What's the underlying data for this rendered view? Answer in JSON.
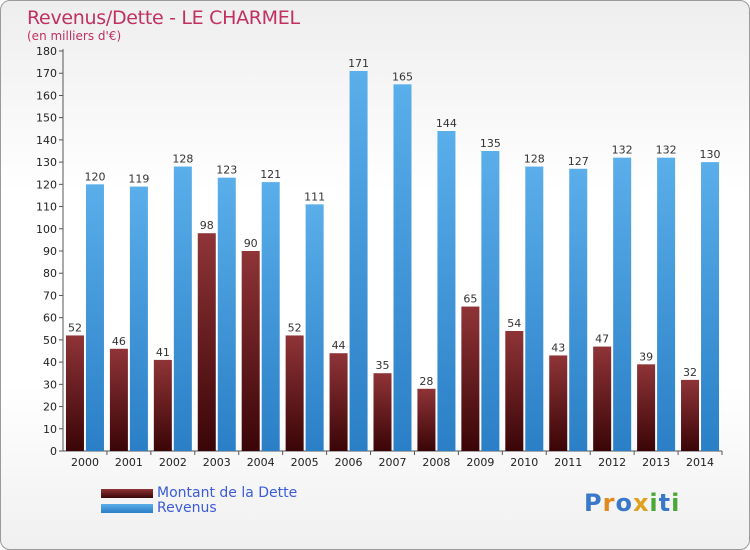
{
  "title": "Revenus/Dette - LE CHARMEL",
  "subtitle": "(en milliers d'€)",
  "colors": {
    "dette_top": "#8f3437",
    "dette_bottom": "#3a0507",
    "revenus_top": "#5aaeea",
    "revenus_bottom": "#2a7fc6",
    "title": "#c03060"
  },
  "legend": {
    "dette": "Montant de la Dette",
    "revenus": "Revenus"
  },
  "logo": [
    "P",
    "r",
    "o",
    "x",
    "i",
    "t",
    "i"
  ],
  "logo_colors": [
    "#3a78c8",
    "#e08a1e",
    "#3a78c8",
    "#e0a020",
    "#49a838",
    "#3a78c8",
    "#49a838"
  ],
  "chart_data": {
    "type": "bar",
    "title": "Revenus/Dette - LE CHARMEL",
    "ylabel": "(en milliers d'€)",
    "ylim": [
      0,
      180
    ],
    "ytick_step": 10,
    "grid": false,
    "categories": [
      "2000",
      "2001",
      "2002",
      "2003",
      "2004",
      "2005",
      "2006",
      "2007",
      "2008",
      "2009",
      "2010",
      "2011",
      "2012",
      "2013",
      "2014"
    ],
    "series": [
      {
        "name": "Montant de la Dette",
        "values": [
          52,
          46,
          41,
          98,
          90,
          52,
          44,
          35,
          28,
          65,
          54,
          43,
          47,
          39,
          32
        ]
      },
      {
        "name": "Revenus",
        "values": [
          120,
          119,
          128,
          123,
          121,
          111,
          171,
          165,
          144,
          135,
          128,
          127,
          132,
          132,
          130
        ]
      }
    ]
  }
}
